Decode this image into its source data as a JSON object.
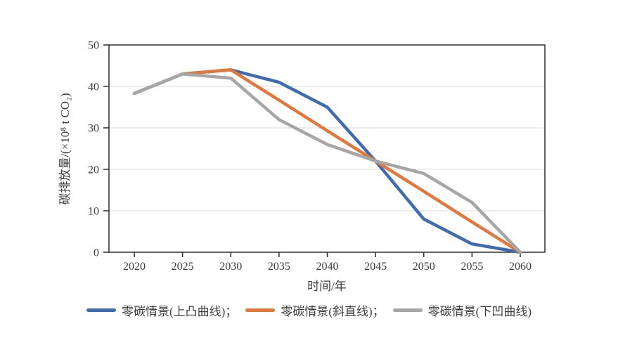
{
  "figure": {
    "background": "#ffffff",
    "text_color": "#3c3c3c",
    "axis_color": "#2e2e2e",
    "grid_color": "#d9d9d9"
  },
  "chart_data": {
    "type": "line",
    "title": "",
    "xlabel": "时间/年",
    "ylabel": "碳排放量/(×10⁸ t CO₂)",
    "x": [
      2020,
      2025,
      2030,
      2035,
      2040,
      2045,
      2050,
      2055,
      2060
    ],
    "series": [
      {
        "name": "零碳情景(上凸曲线)",
        "color": "#3F6CB0",
        "values": [
          38.3,
          43,
          44,
          41,
          35,
          22,
          8,
          2,
          0
        ]
      },
      {
        "name": "零碳情景(斜直线)",
        "color": "#E2773C",
        "values": [
          38.3,
          43,
          44,
          36.7,
          29.3,
          22,
          14.7,
          7.3,
          0
        ]
      },
      {
        "name": "零碳情景(下凹曲线)",
        "color": "#A6A6A6",
        "values": [
          38.3,
          43,
          42,
          32,
          26,
          22,
          19,
          12,
          0
        ]
      }
    ],
    "legend_labels": [
      "零碳情景(上凸曲线)；",
      "零碳情景(斜直线)；",
      "零碳情景(下凹曲线)"
    ],
    "xlim": [
      2020,
      2060
    ],
    "ylim": [
      0,
      50
    ],
    "yticks": [
      0,
      10,
      20,
      30,
      40,
      50
    ],
    "grid": "horizontal",
    "legend_position": "bottom"
  }
}
